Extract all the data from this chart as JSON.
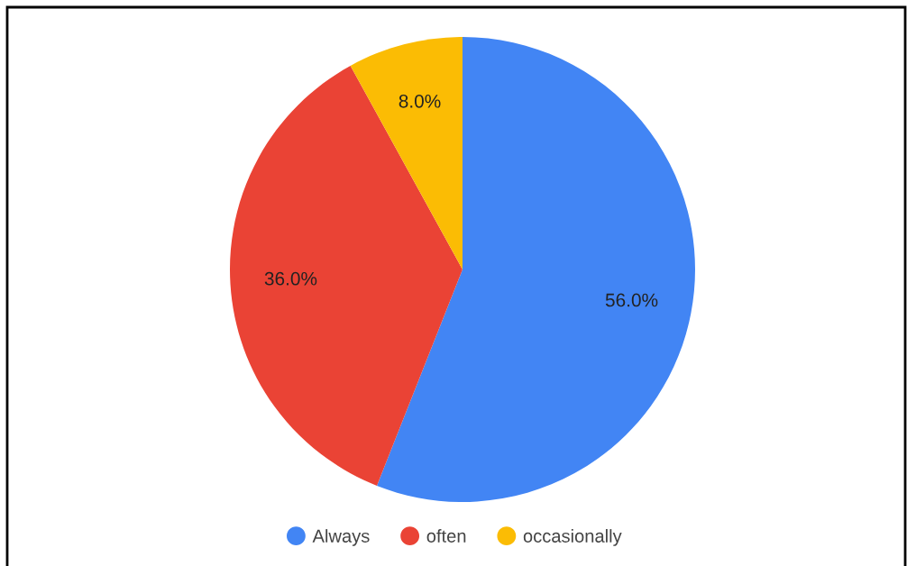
{
  "chart_data": {
    "type": "pie",
    "categories": [
      "Always",
      "often",
      "occasionally"
    ],
    "values": [
      56,
      36,
      8
    ],
    "colors": [
      "#4285f4",
      "#ea4335",
      "#fbbc04"
    ],
    "value_labels": [
      "56.0%",
      "36.0%",
      "8.0%"
    ],
    "legend": "bottom"
  }
}
